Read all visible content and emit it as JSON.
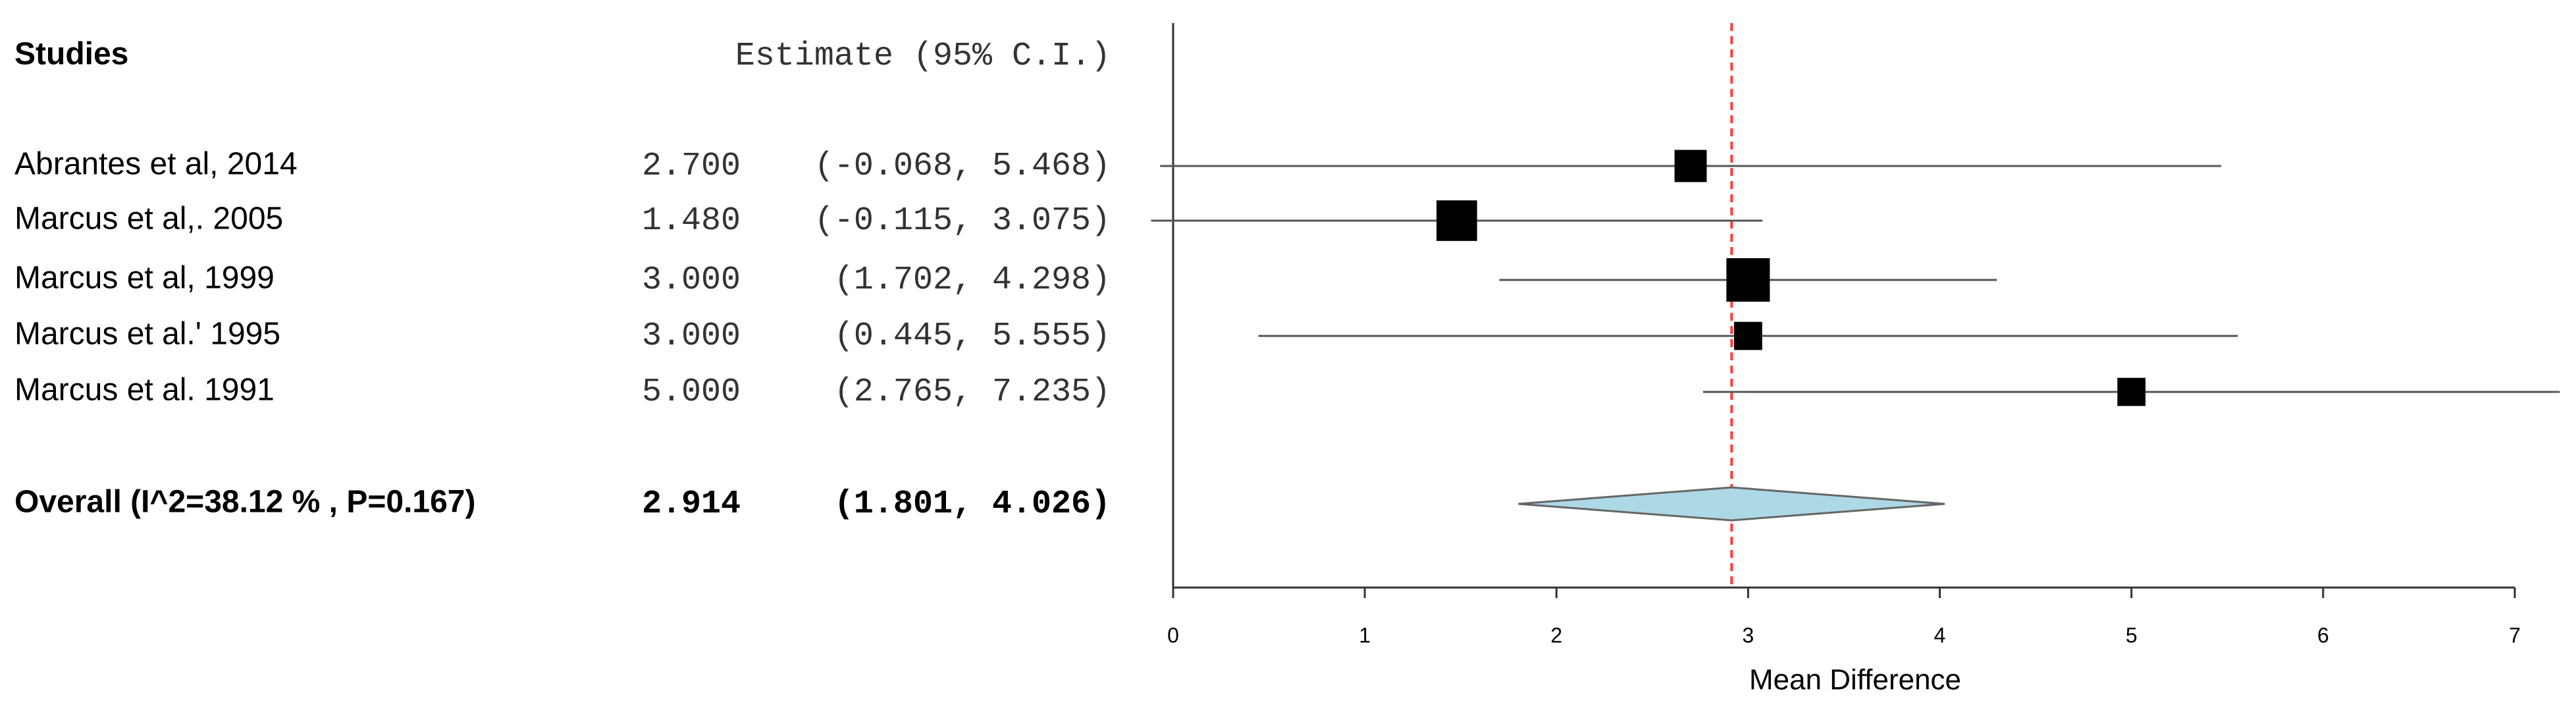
{
  "chart_data": {
    "type": "forest",
    "headers": [
      "Studies",
      "Estimate (95% C.I.)"
    ],
    "studies": [
      "Abrantes et al,  2014",
      "Marcus et al,. 2005",
      "Marcus et al,  1999",
      "Marcus et al.' 1995",
      "Marcus et al. 1991"
    ],
    "estimates": [
      2.7,
      1.48,
      3.0,
      3.0,
      5.0
    ],
    "value_labels": [
      "2.700",
      "1.480",
      "3.000",
      "3.000",
      "5.000"
    ],
    "lower": [
      -0.068,
      -0.115,
      1.702,
      0.445,
      2.765
    ],
    "upper": [
      5.468,
      3.075,
      4.298,
      5.555,
      7.235
    ],
    "ci_labels": [
      "(-0.068, 5.468)",
      "(-0.115, 3.075)",
      "(1.702, 4.298)",
      "(0.445, 5.555)",
      "(2.765, 7.235)"
    ],
    "weights": [
      17,
      27,
      31,
      13,
      13
    ],
    "overall": {
      "label": "Overall (I^2=38.12 % , P=0.167)",
      "estimate": 2.914,
      "value_label": "2.914",
      "lower": 1.801,
      "upper": 4.026,
      "ci_label": "(1.801, 4.026)",
      "color": "#add8e6"
    },
    "xlabel": "Mean Difference",
    "xlim": [
      0,
      7
    ],
    "xticks": [
      0,
      1,
      2,
      3,
      4,
      5,
      6,
      7
    ],
    "marker_color": "#000000",
    "reference_line_color": "#ff3b3b"
  }
}
